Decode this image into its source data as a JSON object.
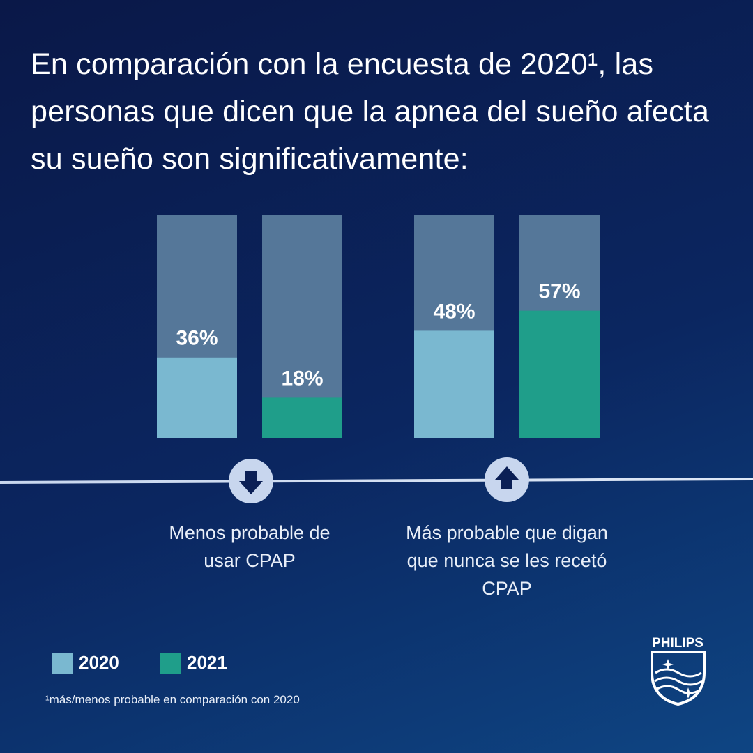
{
  "chart_data": {
    "type": "bar",
    "title": "En comparación con la encuesta de 2020¹, las personas que dicen que la apnea del sueño afecta su sueño son significativamente:",
    "categories": [
      "Menos probable de usar CPAP",
      "Más probable que digan que nunca se les recetó CPAP"
    ],
    "series": [
      {
        "name": "2020",
        "color": "#7ab8d0",
        "values": [
          36,
          48
        ],
        "value_labels": [
          "36%",
          "48%"
        ]
      },
      {
        "name": "2021",
        "color": "#1f9e8a",
        "values": [
          18,
          57
        ],
        "value_labels": [
          "18%",
          "57%"
        ]
      }
    ],
    "ylim": [
      0,
      100
    ],
    "footnote": "¹más/menos probable en comparación con 2020",
    "brand": "PHILIPS"
  }
}
